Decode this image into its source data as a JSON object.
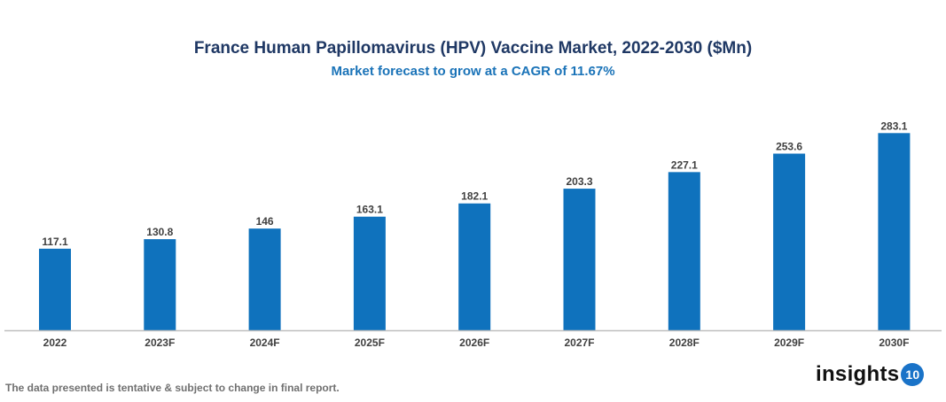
{
  "chart_data": {
    "type": "bar",
    "title": "France Human Papillomavirus (HPV) Vaccine Market, 2022-2030 ($Mn)",
    "subtitle": "Market forecast to grow at a CAGR of 11.67%",
    "categories": [
      "2022",
      "2023F",
      "2024F",
      "2025F",
      "2026F",
      "2027F",
      "2028F",
      "2029F",
      "2030F"
    ],
    "values": [
      117.1,
      130.8,
      146,
      163.1,
      182.1,
      203.3,
      227.1,
      253.6,
      283.1
    ],
    "data_labels": [
      "117.1",
      "130.8",
      "146",
      "163.1",
      "182.1",
      "203.3",
      "227.1",
      "253.6",
      "283.1"
    ],
    "xlabel": "",
    "ylabel": "",
    "ylim": [
      0,
      300
    ],
    "grid": false,
    "bar_color": "#0f72bd"
  },
  "footnote": "The data presented is tentative & subject to change in final report.",
  "logo": {
    "text": "insights",
    "badge": "10"
  }
}
